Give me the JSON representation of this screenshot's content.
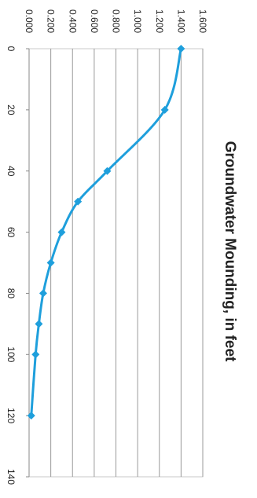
{
  "chart_data": {
    "type": "line",
    "title": "Groundwater Mounding, in feet",
    "xlabel": "",
    "ylabel": "",
    "x": [
      0,
      20,
      40,
      50,
      60,
      70,
      80,
      90,
      100,
      120
    ],
    "series": [
      {
        "values": [
          1.4,
          1.25,
          0.72,
          0.45,
          0.3,
          0.2,
          0.13,
          0.09,
          0.06,
          0.02
        ]
      }
    ],
    "xlim": [
      0,
      140
    ],
    "ylim": [
      0,
      1.6
    ],
    "x_ticks": [
      "0",
      "20",
      "40",
      "60",
      "80",
      "100",
      "120",
      "140"
    ],
    "y_ticks": [
      "0.000",
      "0.200",
      "0.400",
      "0.600",
      "0.800",
      "1.000",
      "1.200",
      "1.400",
      "1.600"
    ],
    "grid": true,
    "legend": "none",
    "orientation": "rotated-90-clockwise",
    "series_color": "#1e9fdc",
    "grid_color": "#9a9a9a"
  }
}
